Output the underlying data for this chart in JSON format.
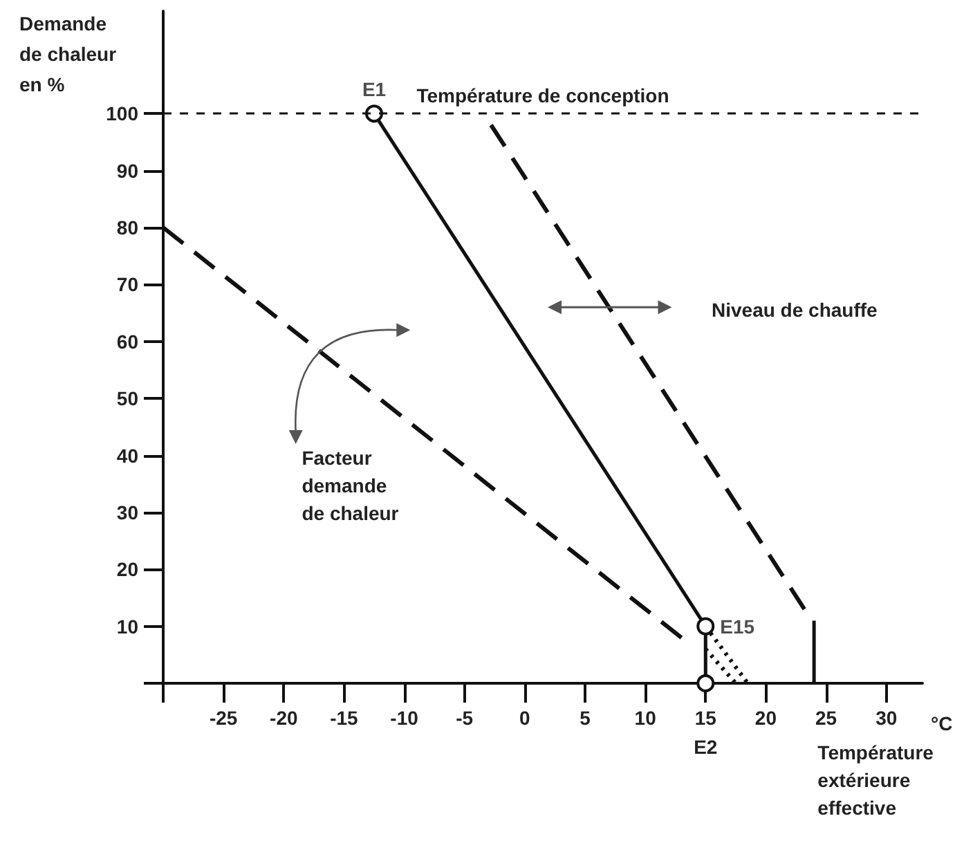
{
  "chart_data": {
    "type": "line",
    "ylabel": "Demande de chaleur en %",
    "xlabel": "°C",
    "xlim": [
      -30,
      33
    ],
    "xticks": [
      {
        "value": -30,
        "label": null
      },
      -25,
      -20,
      -15,
      -10,
      -5,
      0,
      5,
      10,
      15,
      20,
      25,
      30
    ],
    "ylim": [
      0,
      118
    ],
    "yticks": [
      {
        "value": 0,
        "label": null
      },
      10,
      20,
      30,
      40,
      50,
      60,
      70,
      80,
      90,
      100
    ],
    "grid": false,
    "series": [
      {
        "color": "#111111",
        "line_style": "solid",
        "marker": "circle",
        "x": [
          -12.5,
          15,
          15
        ],
        "values": [
          100,
          10,
          0
        ]
      },
      {
        "color": "#111111",
        "line_style": "dashed",
        "x": [
          -30,
          13
        ],
        "values": [
          80,
          8
        ]
      },
      {
        "color": "#111111",
        "line_style": "dashed",
        "x": [
          -2.8,
          23.2
        ],
        "values": [
          98,
          13
        ]
      },
      {
        "color": "#111111",
        "line_style": "solid",
        "x": [
          24,
          24
        ],
        "values": [
          11,
          0
        ]
      },
      {
        "color": "#111111",
        "line_style": "dotted",
        "x": [
          15,
          18.5
        ],
        "values": [
          10,
          0
        ]
      },
      {
        "color": "#111111",
        "line_style": "dotted",
        "x": [
          15,
          17.5
        ],
        "values": [
          6,
          0
        ]
      }
    ],
    "ref_lines": [
      {
        "axis": "y",
        "value": 100,
        "label": "Température de conception",
        "line_style": "dashed",
        "color": "#111111"
      }
    ],
    "annotations": [
      {
        "text": "E1",
        "x": -12.5,
        "y": 100
      },
      {
        "text": "E15",
        "x": 15,
        "y": 10
      },
      "E2",
      "Niveau de chauffe",
      "Facteur demande de chaleur",
      "Température extérieure effective"
    ]
  }
}
